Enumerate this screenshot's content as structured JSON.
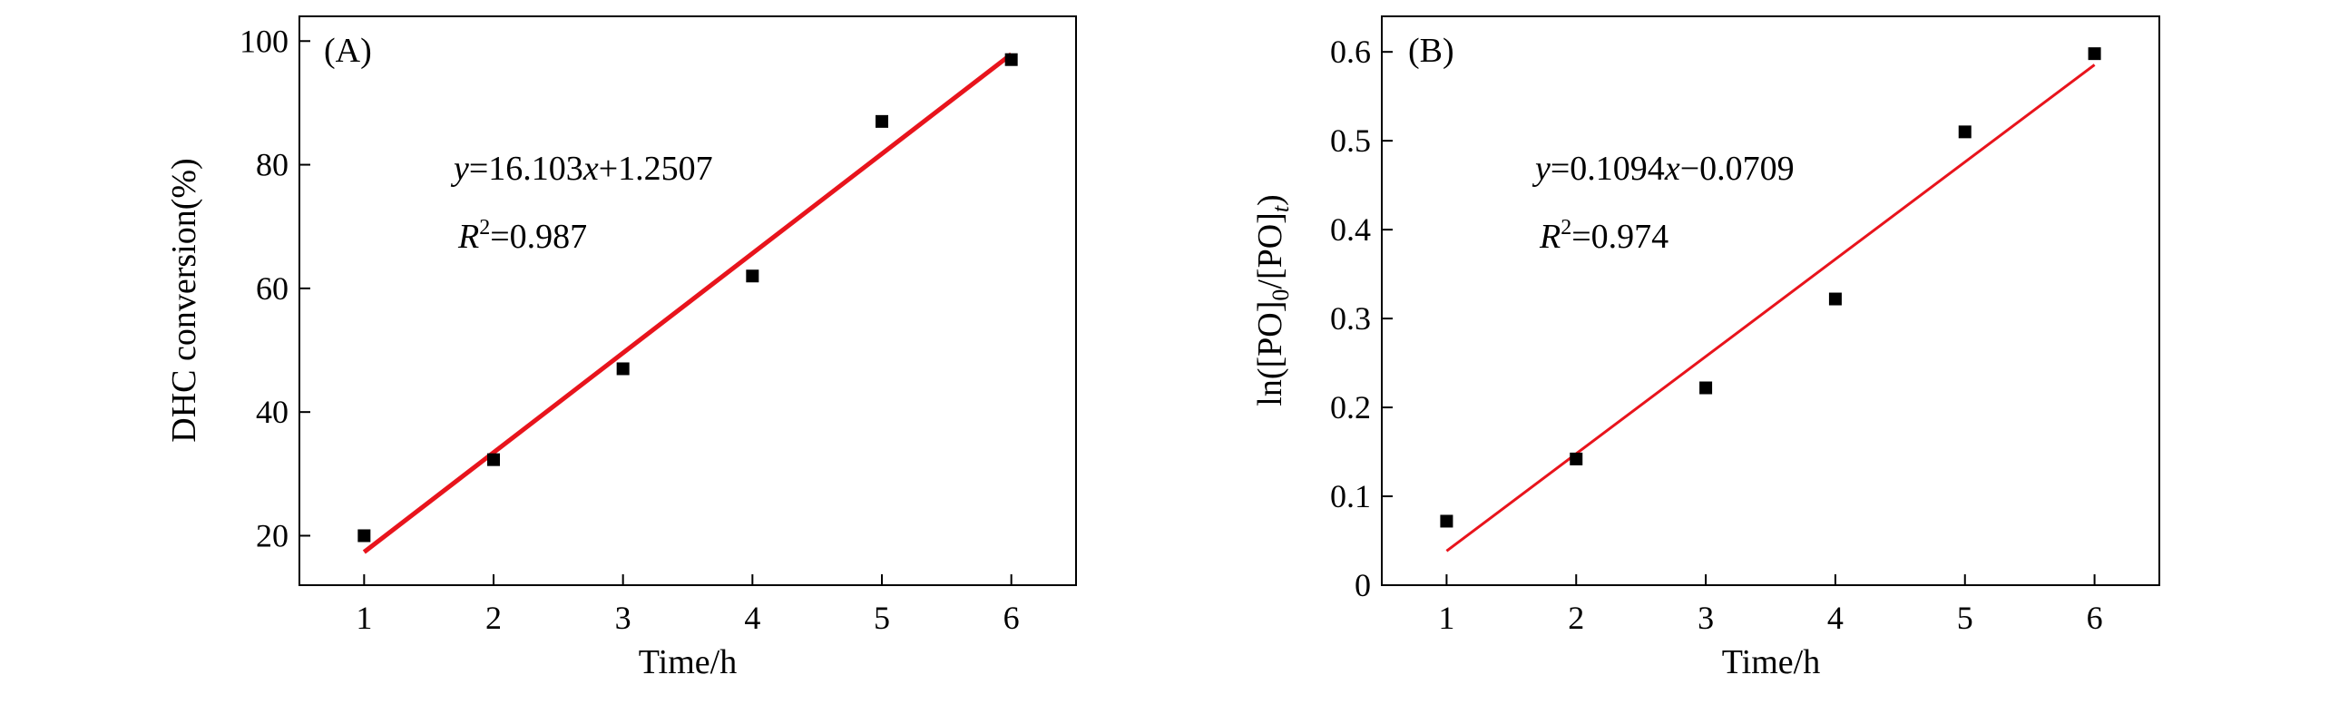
{
  "chart_data": [
    {
      "type": "scatter",
      "panel_label": "(A)",
      "xlabel": "Time/h",
      "ylabel": "DHC conversion(%)",
      "xlim": [
        0.5,
        6.5
      ],
      "ylim": [
        12,
        104
      ],
      "x_ticks": [
        1,
        2,
        3,
        4,
        5,
        6
      ],
      "y_ticks": [
        20,
        40,
        60,
        80,
        100
      ],
      "x": [
        1,
        2,
        3,
        4,
        5,
        6
      ],
      "y": [
        20,
        32.3,
        47,
        62,
        87,
        97
      ],
      "fit": {
        "slope": 16.103,
        "intercept": 1.2507,
        "color": "#e8141c",
        "line_width": 5
      },
      "annotation": {
        "equation": "=16.103",
        "equation_tail": "+1.2507",
        "r2_value": "=0.987"
      },
      "marker_color": "#000000"
    },
    {
      "type": "scatter",
      "panel_label": "(B)",
      "xlabel": "Time/h",
      "ylabel_main": "ln([PO]",
      "ylabel_sub0": "0",
      "ylabel_mid": "/[PO]",
      "ylabel_subt": "t",
      "ylabel_close": ")",
      "xlim": [
        0.5,
        6.5
      ],
      "ylim": [
        0,
        0.64
      ],
      "x_ticks": [
        1,
        2,
        3,
        4,
        5,
        6
      ],
      "y_ticks": [
        0,
        0.1,
        0.2,
        0.3,
        0.4,
        0.5,
        0.6
      ],
      "y_tick_labels": [
        "0",
        "0.1",
        "0.2",
        "0.3",
        "0.4",
        "0.5",
        "0.6"
      ],
      "x": [
        1,
        2,
        3,
        4,
        5,
        6
      ],
      "y": [
        0.072,
        0.142,
        0.222,
        0.322,
        0.51,
        0.598
      ],
      "fit": {
        "slope": 0.1094,
        "intercept": -0.0709,
        "color": "#e8141c",
        "line_width": 3
      },
      "annotation": {
        "equation": "=0.1094",
        "equation_tail": "−0.0709",
        "r2_value": "=0.974"
      },
      "marker_color": "#000000"
    }
  ],
  "labels": {
    "y": "y",
    "x": "x",
    "R": "R",
    "two": "2"
  }
}
